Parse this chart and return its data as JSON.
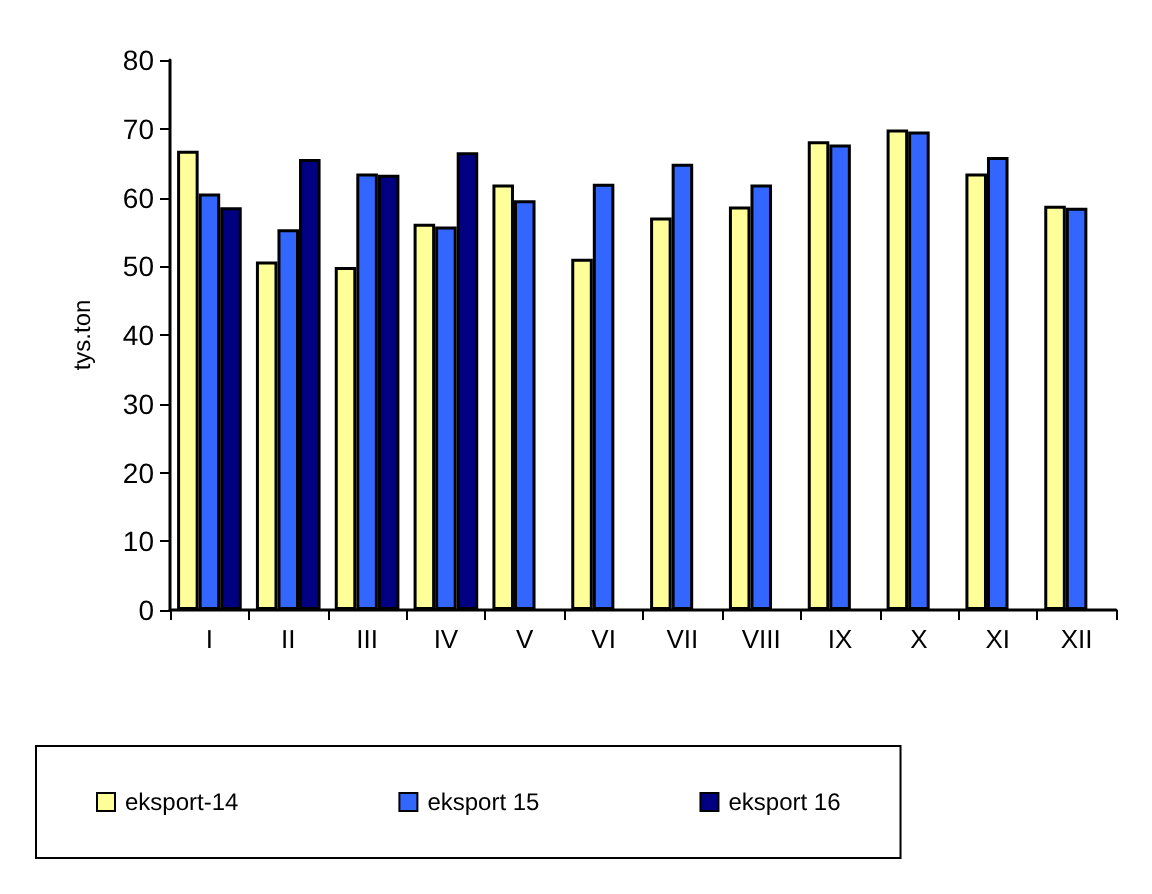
{
  "chart_data": {
    "type": "bar",
    "ylabel": "tys.ton",
    "categories": [
      "I",
      "II",
      "III",
      "IV",
      "V",
      "VI",
      "VII",
      "VIII",
      "IX",
      "X",
      "XI",
      "XII"
    ],
    "series": [
      {
        "name": "eksport-14",
        "color": "#ffff99",
        "values": [
          66.8,
          50.7,
          49.9,
          56.2,
          61.9,
          51.1,
          57.1,
          58.7,
          68.2,
          69.9,
          63.5,
          58.8
        ]
      },
      {
        "name": "eksport 15",
        "color": "#3366ff",
        "values": [
          60.6,
          55.4,
          63.5,
          55.8,
          59.6,
          62.0,
          64.9,
          61.9,
          67.7,
          69.6,
          65.9,
          58.5
        ]
      },
      {
        "name": "eksport 16",
        "color": "#000080",
        "values": [
          58.6,
          65.6,
          63.3,
          66.6,
          null,
          null,
          null,
          null,
          null,
          null,
          null,
          null
        ]
      }
    ],
    "ylim": [
      0,
      80
    ],
    "yticks": [
      0,
      10,
      20,
      30,
      40,
      50,
      60,
      70,
      80
    ],
    "grid": false,
    "legend": "bottom"
  }
}
